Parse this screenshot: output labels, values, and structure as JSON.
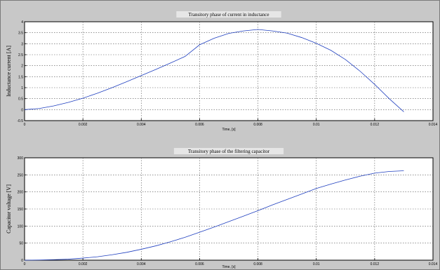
{
  "chart_data": [
    {
      "type": "line",
      "title": "Transitory phase of current in inductance",
      "xlabel": "Time, [s]",
      "ylabel": "Inductance current [A]",
      "xlim": [
        0,
        0.014
      ],
      "ylim": [
        -0.5,
        4
      ],
      "xticks": [
        0,
        0.002,
        0.004,
        0.006,
        0.008,
        0.01,
        0.012,
        0.014
      ],
      "xtick_labels": [
        "0",
        "0.002",
        "0.004",
        "0.006",
        "0.008",
        "0.01",
        "0.012",
        "0.014"
      ],
      "yticks": [
        -0.5,
        0,
        0.5,
        1,
        1.5,
        2,
        2.5,
        3,
        3.5,
        4
      ],
      "ytick_labels": [
        "-0.5",
        "0",
        "0.5",
        "1",
        "1.5",
        "2",
        "2.5",
        "3",
        "3.5",
        "4"
      ],
      "grid": true,
      "series": [
        {
          "color": "#1f3fbf",
          "x": [
            0,
            0.0005,
            0.001,
            0.0015,
            0.002,
            0.0025,
            0.003,
            0.0035,
            0.004,
            0.0045,
            0.005,
            0.0055,
            0.006,
            0.0065,
            0.007,
            0.0075,
            0.008,
            0.0085,
            0.009,
            0.0095,
            0.01,
            0.0105,
            0.011,
            0.0115,
            0.012,
            0.0125,
            0.013
          ],
          "y": [
            0,
            0.05,
            0.17,
            0.33,
            0.52,
            0.75,
            1.0,
            1.27,
            1.55,
            1.83,
            2.12,
            2.42,
            2.95,
            3.25,
            3.47,
            3.58,
            3.65,
            3.58,
            3.48,
            3.28,
            3.02,
            2.7,
            2.28,
            1.75,
            1.15,
            0.5,
            -0.1
          ]
        }
      ]
    },
    {
      "type": "line",
      "title": "Transitory phase of the filtering capacitor",
      "xlabel": "Time, [s]",
      "ylabel": "Capacitor voltage [V]",
      "xlim": [
        0,
        0.014
      ],
      "ylim": [
        0,
        300
      ],
      "xticks": [
        0,
        0.002,
        0.004,
        0.006,
        0.008,
        0.01,
        0.012,
        0.014
      ],
      "xtick_labels": [
        "0",
        "0.002",
        "0.004",
        "0.006",
        "0.008",
        "0.01",
        "0.012",
        "0.014"
      ],
      "yticks": [
        0,
        50,
        100,
        150,
        200,
        250,
        300
      ],
      "ytick_labels": [
        "0",
        "50",
        "100",
        "150",
        "200",
        "250",
        "300"
      ],
      "grid": true,
      "series": [
        {
          "color": "#1f3fbf",
          "x": [
            0,
            0.0005,
            0.001,
            0.0015,
            0.002,
            0.0025,
            0.003,
            0.0035,
            0.004,
            0.0045,
            0.005,
            0.0055,
            0.006,
            0.0065,
            0.007,
            0.0075,
            0.008,
            0.0085,
            0.009,
            0.0095,
            0.01,
            0.0105,
            0.011,
            0.0115,
            0.012,
            0.0125,
            0.013
          ],
          "y": [
            0,
            0.5,
            1.5,
            3,
            6,
            10,
            16,
            23,
            32,
            42,
            54,
            67,
            82,
            97,
            113,
            129,
            145,
            162,
            178,
            194,
            210,
            223,
            235,
            246,
            255,
            260,
            262
          ]
        }
      ]
    }
  ]
}
